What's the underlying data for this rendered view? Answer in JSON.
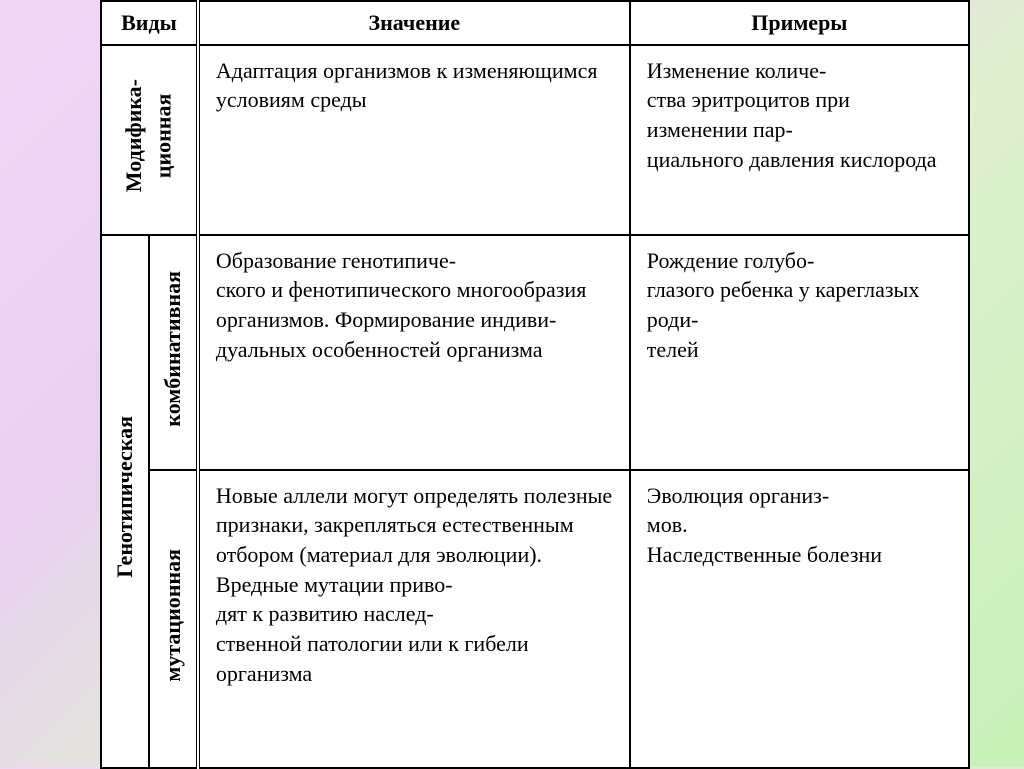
{
  "headers": {
    "types": "Виды",
    "meaning": "Значение",
    "examples": "Примеры"
  },
  "rows": {
    "modif": {
      "label": "Модифика-\nционная",
      "meaning": "Адаптация организмов к изменяющимся условиям среды",
      "examples": "Изменение количе-\nства эритроцитов при изменении пар-\nциального давления кислорода"
    },
    "geno_label": "Генотипическая",
    "combi": {
      "label": "комбинативная",
      "meaning": "Образование генотипиче-\nского и фенотипического многообразия организмов. Формирование индиви-\nдуальных особенностей организма",
      "examples": "Рождение голубо-\nглазого ребенка у кареглазых роди-\nтелей"
    },
    "mutat": {
      "label": "мутационная",
      "meaning": "Новые аллели могут определять полезные признаки, закрепляться естественным отбором (материал для эволюции). Вредные мутации приво-\nдят к развитию наслед-\nственной патологии или к гибели организма",
      "examples": "Эволюция организ-\nмов.\nНаследственные болезни"
    }
  },
  "style": {
    "bg_gradient": [
      "#f0d8f5",
      "#e8d0f0",
      "#e0f0d0",
      "#c8f0b8"
    ],
    "border_color": "#000000",
    "table_bg": "#ffffff",
    "font_size_pt": 16
  }
}
